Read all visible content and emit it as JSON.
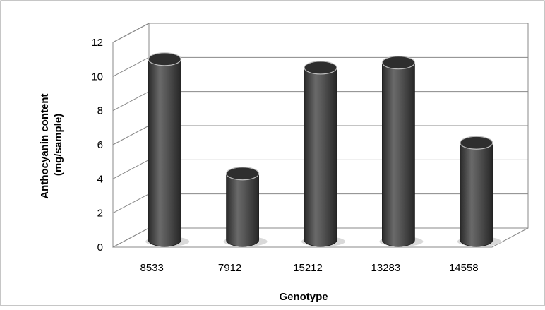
{
  "chart_data": {
    "type": "bar",
    "style": "3d-cylinder",
    "categories": [
      "8533",
      "7912",
      "15212",
      "13283",
      "14558"
    ],
    "values": [
      10.6,
      3.9,
      10.1,
      10.4,
      5.7
    ],
    "xlabel": "Genotype",
    "ylabel_lines": [
      "Anthocyanin content",
      "(mg/sample)"
    ],
    "ylim": [
      0,
      12
    ],
    "yticks": [
      "0",
      "2",
      "4",
      "6",
      "8",
      "10",
      "12"
    ],
    "grid": true,
    "legend": "none",
    "colors": {
      "bar_body": "#4a4a4a",
      "bar_top": "#2e2e2e",
      "gridline": "#888888",
      "plot_frame": "#888888"
    }
  }
}
